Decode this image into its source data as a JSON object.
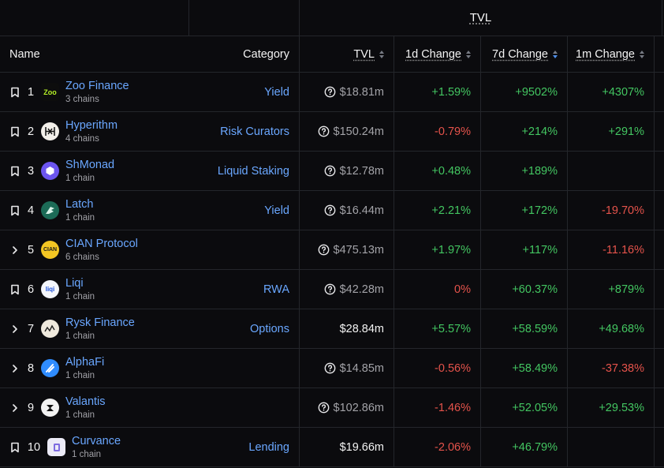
{
  "group_header": {
    "title": "TVL"
  },
  "columns": {
    "name": "Name",
    "category": "Category",
    "tvl": "TVL",
    "d1": "1d Change",
    "d7": "7d Change",
    "m1": "1m Change"
  },
  "colors": {
    "accent_link": "#6aa7ff",
    "positive": "#43c661",
    "negative": "#e5534b",
    "background": "#0b0b0e"
  },
  "rows": [
    {
      "rank": "1",
      "lead_icon": "bookmark-icon",
      "name": "Zoo Finance",
      "chains": "3 chains",
      "category": "Yield",
      "tvl": "$18.81m",
      "tvl_info": true,
      "d1": "+1.59%",
      "d7": "+9502%",
      "m1": "+4307%",
      "logo": "zoo-finance-logo"
    },
    {
      "rank": "2",
      "lead_icon": "bookmark-icon",
      "name": "Hyperithm",
      "chains": "4 chains",
      "category": "Risk Curators",
      "tvl": "$150.24m",
      "tvl_info": true,
      "d1": "-0.79%",
      "d7": "+214%",
      "m1": "+291%",
      "logo": "hyperithm-logo"
    },
    {
      "rank": "3",
      "lead_icon": "bookmark-icon",
      "name": "ShMonad",
      "chains": "1 chain",
      "category": "Liquid Staking",
      "tvl": "$12.78m",
      "tvl_info": true,
      "d1": "+0.48%",
      "d7": "+189%",
      "m1": "",
      "logo": "shmonad-logo"
    },
    {
      "rank": "4",
      "lead_icon": "bookmark-icon",
      "name": "Latch",
      "chains": "1 chain",
      "category": "Yield",
      "tvl": "$16.44m",
      "tvl_info": true,
      "d1": "+2.21%",
      "d7": "+172%",
      "m1": "-19.70%",
      "logo": "latch-logo"
    },
    {
      "rank": "5",
      "lead_icon": "chevron-right-icon",
      "name": "CIAN Protocol",
      "chains": "6 chains",
      "category": "",
      "tvl": "$475.13m",
      "tvl_info": true,
      "d1": "+1.97%",
      "d7": "+117%",
      "m1": "-11.16%",
      "logo": "cian-logo"
    },
    {
      "rank": "6",
      "lead_icon": "bookmark-icon",
      "name": "Liqi",
      "chains": "1 chain",
      "category": "RWA",
      "tvl": "$42.28m",
      "tvl_info": true,
      "d1": "0%",
      "d7": "+60.37%",
      "m1": "+879%",
      "logo": "liqi-logo"
    },
    {
      "rank": "7",
      "lead_icon": "chevron-right-icon",
      "name": "Rysk Finance",
      "chains": "1 chain",
      "category": "Options",
      "tvl": "$28.84m",
      "tvl_info": false,
      "d1": "+5.57%",
      "d7": "+58.59%",
      "m1": "+49.68%",
      "logo": "rysk-logo"
    },
    {
      "rank": "8",
      "lead_icon": "chevron-right-icon",
      "name": "AlphaFi",
      "chains": "1 chain",
      "category": "",
      "tvl": "$14.85m",
      "tvl_info": true,
      "d1": "-0.56%",
      "d7": "+58.49%",
      "m1": "-37.38%",
      "logo": "alphafi-logo"
    },
    {
      "rank": "9",
      "lead_icon": "chevron-right-icon",
      "name": "Valantis",
      "chains": "1 chain",
      "category": "",
      "tvl": "$102.86m",
      "tvl_info": true,
      "d1": "-1.46%",
      "d7": "+52.05%",
      "m1": "+29.53%",
      "logo": "valantis-logo"
    },
    {
      "rank": "10",
      "lead_icon": "bookmark-icon",
      "name": "Curvance",
      "chains": "1 chain",
      "category": "Lending",
      "tvl": "$19.66m",
      "tvl_info": false,
      "d1": "-2.06%",
      "d7": "+46.79%",
      "m1": "",
      "logo": "curvance-logo"
    }
  ]
}
